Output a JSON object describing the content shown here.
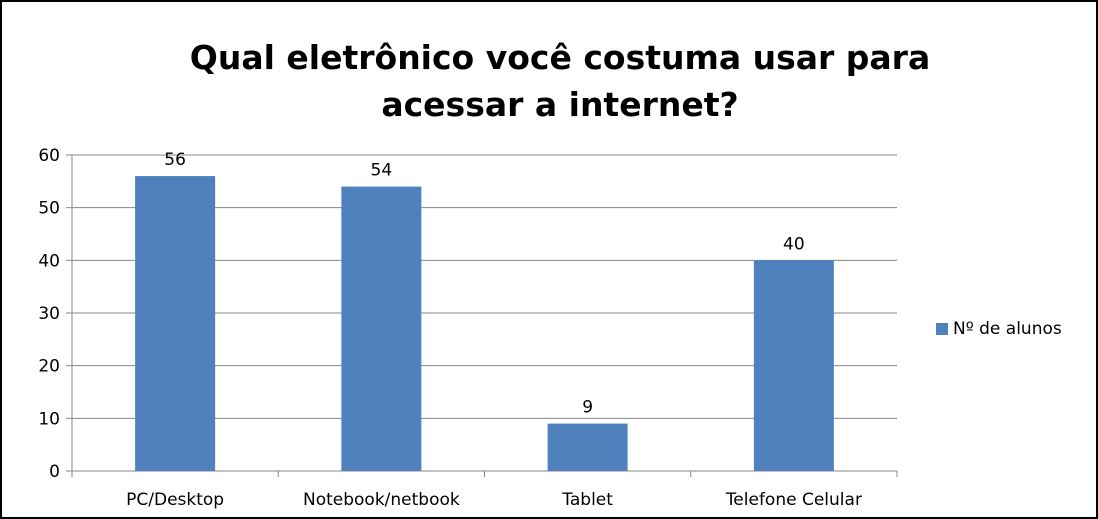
{
  "chart_data": {
    "type": "bar",
    "title_lines": [
      "Qual eletrônico você costuma usar para",
      "acessar a internet?"
    ],
    "categories": [
      "PC/Desktop",
      "Notebook/netbook",
      "Tablet",
      "Telefone Celular"
    ],
    "series": [
      {
        "name": "Nº de alunos",
        "values": [
          56,
          54,
          9,
          40
        ],
        "color": "#4F81BD"
      }
    ],
    "data_labels": [
      "56",
      "54",
      "9",
      "40"
    ],
    "ylim": [
      0,
      60
    ],
    "yticks": [
      0,
      10,
      20,
      30,
      40,
      50,
      60
    ],
    "grid": true,
    "legend_position": "right"
  }
}
